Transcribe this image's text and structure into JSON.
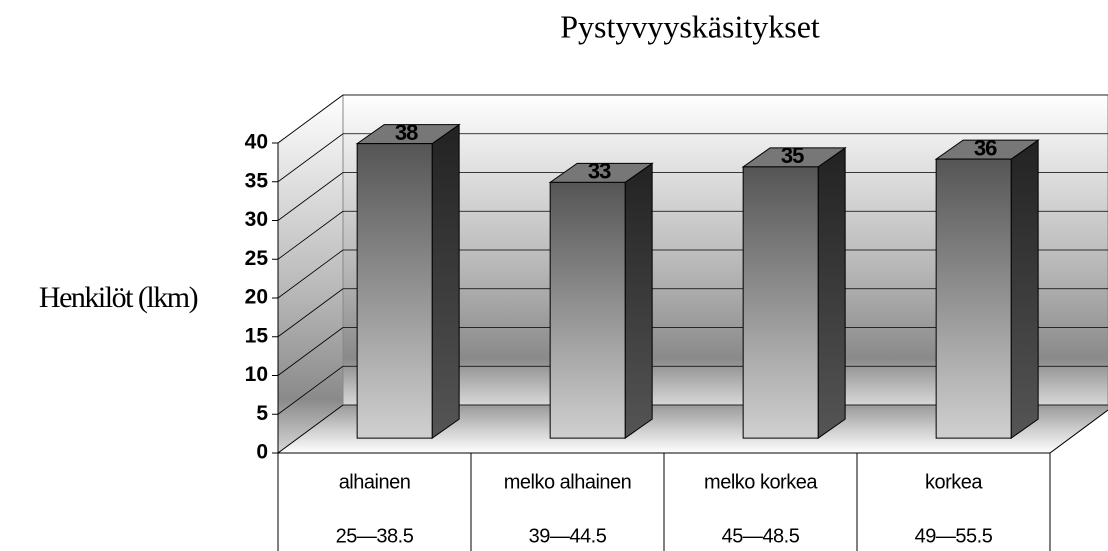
{
  "chart_data": {
    "type": "bar3d",
    "title": "Pystyvyyskäsitykset",
    "y_label": "Henkilöt (lkm)",
    "categories": [
      "alhainen",
      "melko alhainen",
      "melko korkea",
      "korkea"
    ],
    "category_ranges": [
      "25—38.5",
      "39—44.5",
      "45—48.5",
      "49—55.5"
    ],
    "values": [
      38,
      33,
      35,
      36
    ],
    "ylim": [
      0,
      40
    ],
    "yticks": [
      0,
      5,
      10,
      15,
      20,
      25,
      30,
      35,
      40
    ],
    "grid": true
  }
}
